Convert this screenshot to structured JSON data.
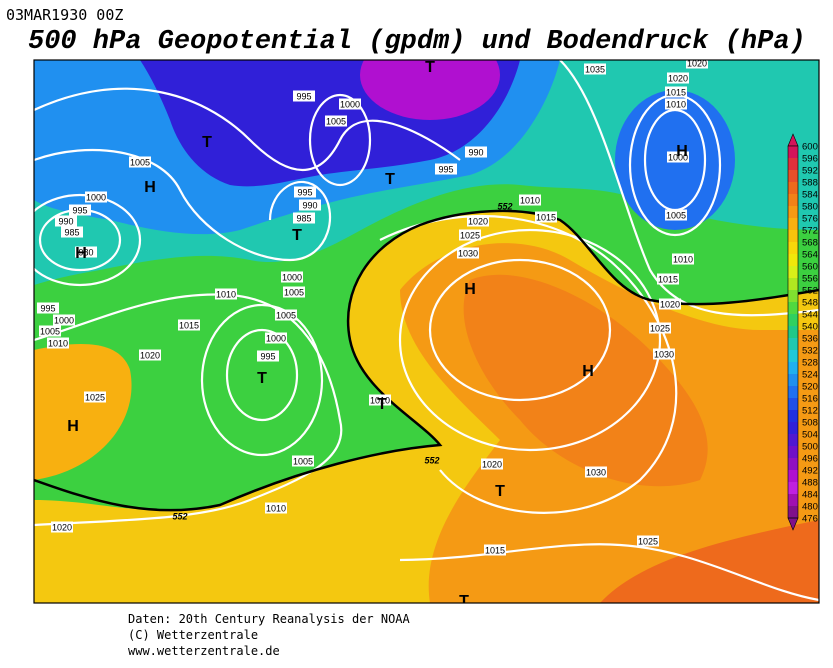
{
  "header": {
    "date": "03MAR1930 00Z",
    "title": "500 hPa Geopotential (gpdm) und Bodendruck (hPa)"
  },
  "map": {
    "isobar_labels": [
      "1035",
      "1020",
      "1020",
      "1015",
      "1010",
      "1000",
      "1005",
      "1010",
      "1015",
      "1020",
      "1025",
      "1030",
      "995",
      "1000",
      "1005",
      "990",
      "995",
      "1005",
      "1000",
      "995",
      "990",
      "985",
      "980",
      "995",
      "990",
      "985",
      "1010",
      "1015",
      "1020",
      "1025",
      "1030",
      "1000",
      "1005",
      "1010",
      "1015",
      "1005",
      "1000",
      "995",
      "995",
      "1000",
      "1005",
      "1010",
      "1020",
      "1025",
      "1010",
      "1005",
      "1010",
      "1020",
      "1030",
      "1025",
      "1015",
      "1020"
    ],
    "height_labels": [
      "552",
      "552",
      "552"
    ],
    "centers": [
      "H",
      "T",
      "T",
      "T",
      "H",
      "H",
      "T",
      "H",
      "T",
      "H",
      "T",
      "T",
      "H",
      "T"
    ]
  },
  "colorbar": {
    "labels": [
      600,
      596,
      592,
      588,
      584,
      580,
      576,
      572,
      568,
      564,
      560,
      556,
      552,
      548,
      544,
      540,
      536,
      532,
      528,
      524,
      520,
      516,
      512,
      508,
      504,
      500,
      496,
      492,
      488,
      484,
      480,
      476
    ],
    "colors": [
      "#d4145a",
      "#e0303c",
      "#e8502a",
      "#ee6a1c",
      "#f28218",
      "#f59a14",
      "#f8b010",
      "#f8c40c",
      "#f8d80a",
      "#f0e80a",
      "#d8f018",
      "#b0e820",
      "#80e030",
      "#50d840",
      "#30d060",
      "#20c888",
      "#20c8b0",
      "#20c8d8",
      "#20b0f0",
      "#2090f0",
      "#2070f0",
      "#2050e8",
      "#2030e0",
      "#3020d8",
      "#5018d0",
      "#7010c8",
      "#9010c0",
      "#b010d0",
      "#c020e0",
      "#a010b0",
      "#80108a"
    ]
  },
  "footer": {
    "source": "Daten: 20th Century Reanalysis der NOAA",
    "copyright": "(C) Wetterzentrale",
    "url": "www.wetterzentrale.de"
  }
}
